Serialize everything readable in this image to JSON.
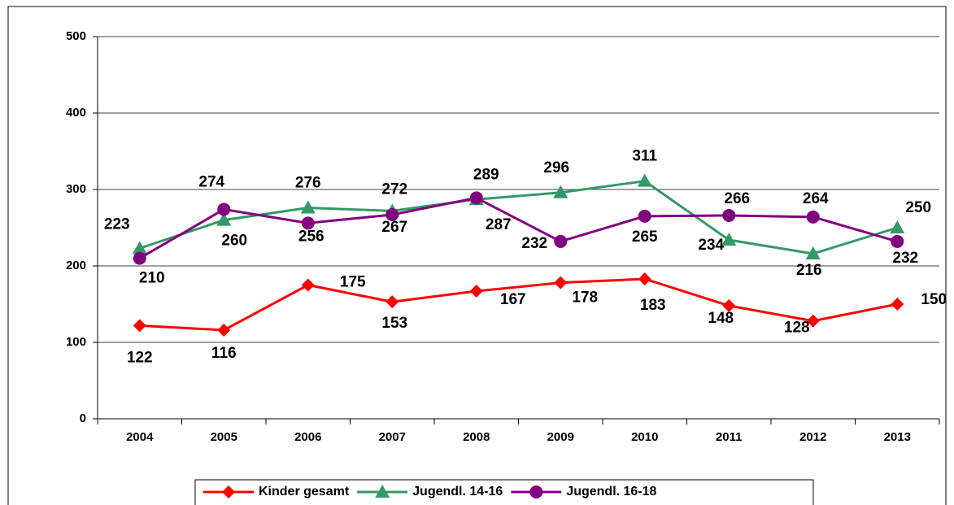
{
  "chart_data": {
    "type": "line",
    "categories": [
      "2004",
      "2005",
      "2006",
      "2007",
      "2008",
      "2009",
      "2010",
      "2011",
      "2012",
      "2013"
    ],
    "series": [
      {
        "name": "Kinder gesamt",
        "color": "#ff0000",
        "marker": "diamond",
        "values": [
          122,
          116,
          175,
          153,
          167,
          178,
          183,
          148,
          128,
          150
        ]
      },
      {
        "name": "Jugendl. 14-16",
        "color": "#339966",
        "marker": "triangle",
        "values": [
          223,
          260,
          276,
          272,
          287,
          296,
          311,
          234,
          216,
          250
        ]
      },
      {
        "name": "Jugendl. 16-18",
        "color": "#800080",
        "marker": "circle",
        "values": [
          210,
          274,
          256,
          267,
          289,
          232,
          265,
          266,
          264,
          232
        ]
      }
    ],
    "ylim": [
      0,
      500
    ],
    "yticks": [
      0,
      100,
      200,
      300,
      400,
      500
    ],
    "grid": true,
    "legend": "bottom"
  }
}
